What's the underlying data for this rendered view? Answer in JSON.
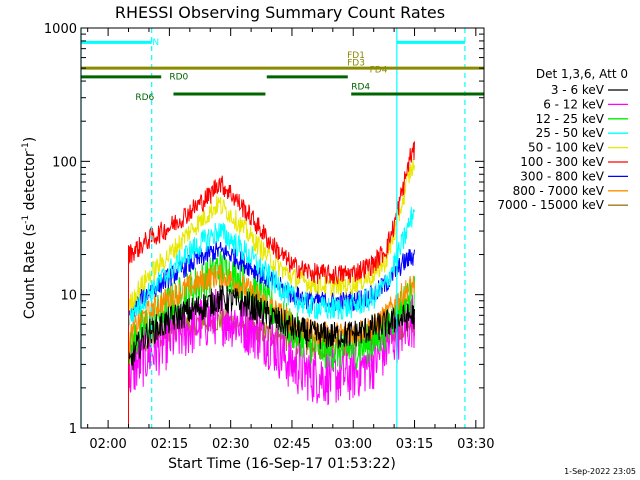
{
  "chart_data": {
    "type": "line",
    "title": "RHESSI Observing Summary Count Rates",
    "xlabel": "Start Time (16-Sep-17 01:53:22)",
    "ylabel_main": "Count Rate (s",
    "ylabel_sup1": "-1",
    "ylabel_mid": " detector",
    "ylabel_sup2": "-1",
    "ylabel_end": ")",
    "y_scale": "log",
    "ylim": [
      1,
      1000
    ],
    "xlim": [
      "01:53:22",
      "03:32:00"
    ],
    "x_ticks": [
      "02:00",
      "02:15",
      "02:30",
      "02:45",
      "03:00",
      "03:15",
      "03:30"
    ],
    "y_ticks": [
      "1",
      "10",
      "100",
      "1000"
    ],
    "timestamp": "1-Sep-2022 23:05",
    "legend": {
      "title": "Det 1,3,6, Att 0",
      "placement": "right",
      "entries": [
        {
          "label": "3 - 6 keV",
          "color": "#000000"
        },
        {
          "label": "6 - 12 keV",
          "color": "#ff00ff"
        },
        {
          "label": "12 - 25 keV",
          "color": "#00ee00"
        },
        {
          "label": "25 - 50 keV",
          "color": "#00ffff"
        },
        {
          "label": "50 - 100 keV",
          "color": "#e8e800"
        },
        {
          "label": "100 - 300 keV",
          "color": "#ff0000"
        },
        {
          "label": "300 - 800 keV",
          "color": "#0000ff"
        },
        {
          "label": "800 - 7000 keV",
          "color": "#ff8c00"
        },
        {
          "label": "7000 - 15000 keV",
          "color": "#a0781e"
        }
      ]
    },
    "series": [
      {
        "name": "3 - 6 keV",
        "color": "#000000",
        "x": [
          "02:05:00",
          "02:07:00",
          "02:10:00",
          "02:15:00",
          "02:20:00",
          "02:25:00",
          "02:27:00",
          "02:30:00",
          "02:35:00",
          "02:40:00",
          "02:45:00",
          "02:50:00",
          "02:55:00",
          "03:00:00",
          "03:05:00",
          "03:08:00",
          "03:10:00",
          "03:12:00",
          "03:14:00",
          "03:15:00"
        ],
        "y": [
          2.8,
          4.0,
          5.2,
          6.4,
          7.5,
          8.6,
          9.3,
          9.1,
          8.2,
          6.8,
          5.6,
          5.0,
          4.9,
          5.1,
          5.6,
          6.0,
          6.3,
          6.6,
          6.9,
          7.0
        ]
      },
      {
        "name": "6 - 12 keV",
        "color": "#ff00ff",
        "x": [
          "02:05:00",
          "02:07:00",
          "02:10:00",
          "02:15:00",
          "02:20:00",
          "02:25:00",
          "02:27:00",
          "02:30:00",
          "02:35:00",
          "02:40:00",
          "02:45:00",
          "02:50:00",
          "02:55:00",
          "03:00:00",
          "03:05:00",
          "03:08:00",
          "03:10:00",
          "03:12:00",
          "03:14:00",
          "03:15:00"
        ],
        "y": [
          2.4,
          3.0,
          3.6,
          4.6,
          5.6,
          6.6,
          7.0,
          6.6,
          5.6,
          4.4,
          3.0,
          2.5,
          2.4,
          2.6,
          3.2,
          4.0,
          4.8,
          5.6,
          6.4,
          6.6
        ]
      },
      {
        "name": "12 - 25 keV",
        "color": "#00ee00",
        "x": [
          "02:05:00",
          "02:07:00",
          "02:10:00",
          "02:15:00",
          "02:20:00",
          "02:25:00",
          "02:27:00",
          "02:30:00",
          "02:35:00",
          "02:40:00",
          "02:45:00",
          "02:50:00",
          "02:55:00",
          "03:00:00",
          "03:05:00",
          "03:08:00",
          "03:10:00",
          "03:12:00",
          "03:14:00",
          "03:15:00"
        ],
        "y": [
          4.0,
          5.0,
          6.2,
          8.5,
          11.0,
          14.0,
          16.0,
          14.5,
          11.0,
          8.0,
          5.5,
          4.2,
          3.8,
          3.9,
          4.4,
          5.5,
          7.0,
          8.5,
          9.5,
          9.8
        ]
      },
      {
        "name": "25 - 50 keV",
        "color": "#00ffff",
        "x": [
          "02:05:00",
          "02:07:00",
          "02:10:00",
          "02:15:00",
          "02:20:00",
          "02:25:00",
          "02:27:00",
          "02:30:00",
          "02:35:00",
          "02:40:00",
          "02:45:00",
          "02:50:00",
          "02:55:00",
          "03:00:00",
          "03:05:00",
          "03:08:00",
          "03:10:00",
          "03:12:00",
          "03:14:00",
          "03:15:00"
        ],
        "y": [
          6.5,
          8.0,
          10.5,
          15.0,
          21.0,
          27.0,
          30.0,
          26.0,
          19.0,
          13.0,
          9.5,
          8.0,
          7.8,
          8.2,
          9.5,
          12.0,
          17.0,
          24.0,
          36.0,
          44.0
        ]
      },
      {
        "name": "50 - 100 keV",
        "color": "#e8e800",
        "x": [
          "02:05:00",
          "02:07:00",
          "02:10:00",
          "02:15:00",
          "02:20:00",
          "02:25:00",
          "02:27:00",
          "02:30:00",
          "02:35:00",
          "02:40:00",
          "02:45:00",
          "02:50:00",
          "02:55:00",
          "03:00:00",
          "03:05:00",
          "03:08:00",
          "03:10:00",
          "03:12:00",
          "03:14:00",
          "03:15:00"
        ],
        "y": [
          8.0,
          10.5,
          14.0,
          20.0,
          30.0,
          42.0,
          48.0,
          40.0,
          27.0,
          18.0,
          13.5,
          12.0,
          11.5,
          12.0,
          14.0,
          18.0,
          28.0,
          50.0,
          85.0,
          95.0
        ]
      },
      {
        "name": "100 - 300 keV",
        "color": "#ff0000",
        "x": [
          "02:05:00",
          "02:07:00",
          "02:10:00",
          "02:15:00",
          "02:20:00",
          "02:25:00",
          "02:27:00",
          "02:30:00",
          "02:35:00",
          "02:40:00",
          "02:45:00",
          "02:50:00",
          "02:55:00",
          "03:00:00",
          "03:05:00",
          "03:08:00",
          "03:10:00",
          "03:12:00",
          "03:14:00",
          "03:15:00"
        ],
        "y": [
          20.0,
          22.0,
          26.0,
          32.0,
          42.0,
          56.0,
          70.0,
          58.0,
          38.0,
          24.0,
          16.5,
          14.5,
          14.0,
          14.5,
          17.0,
          22.0,
          33.0,
          60.0,
          110.0,
          118.0
        ]
      },
      {
        "name": "300 - 800 keV",
        "color": "#0000ff",
        "x": [
          "02:05:00",
          "02:07:00",
          "02:10:00",
          "02:15:00",
          "02:20:00",
          "02:25:00",
          "02:27:00",
          "02:30:00",
          "02:35:00",
          "02:40:00",
          "02:45:00",
          "02:50:00",
          "02:55:00",
          "03:00:00",
          "03:05:00",
          "03:08:00",
          "03:10:00",
          "03:12:00",
          "03:14:00",
          "03:15:00"
        ],
        "y": [
          6.5,
          8.5,
          10.5,
          13.5,
          17.0,
          20.5,
          21.5,
          20.0,
          16.0,
          12.5,
          10.0,
          9.0,
          8.8,
          9.0,
          10.0,
          12.0,
          14.5,
          17.0,
          19.0,
          19.5
        ]
      },
      {
        "name": "800 - 7000 keV",
        "color": "#ff8c00",
        "x": [
          "02:05:00",
          "02:07:00",
          "02:10:00",
          "02:15:00",
          "02:20:00",
          "02:25:00",
          "02:27:00",
          "02:30:00",
          "02:35:00",
          "02:40:00",
          "02:45:00",
          "02:50:00",
          "02:55:00",
          "03:00:00",
          "03:05:00",
          "03:08:00",
          "03:10:00",
          "03:12:00",
          "03:14:00",
          "03:15:00"
        ],
        "y": [
          4.5,
          6.0,
          7.5,
          9.5,
          11.5,
          13.5,
          14.0,
          13.0,
          10.5,
          8.0,
          6.2,
          5.2,
          5.0,
          5.2,
          5.8,
          7.0,
          8.5,
          10.0,
          11.5,
          12.0
        ]
      },
      {
        "name": "7000 - 15000 keV",
        "color": "#a0781e",
        "x": [
          "02:05:00",
          "02:10:00",
          "02:15:00",
          "02:25:00",
          "02:30:00",
          "02:40:00",
          "02:50:00",
          "03:00:00",
          "03:10:00",
          "03:15:00"
        ],
        "y": [
          3.8,
          4.5,
          5.5,
          6.5,
          6.3,
          5.0,
          4.0,
          4.2,
          5.5,
          6.0
        ]
      }
    ],
    "attenuator_markers": [
      {
        "x": "01:53:22",
        "color": "#00ffff",
        "style": "solid"
      },
      {
        "x": "02:10:40",
        "color": "#00ffff",
        "style": "dashed"
      },
      {
        "x": "03:10:40",
        "color": "#00ffff",
        "style": "solid"
      },
      {
        "x": "03:27:20",
        "color": "#00ffff",
        "style": "dashed"
      }
    ],
    "flag_bars": [
      {
        "label": "N",
        "color": "#00ffff",
        "y_value": 780,
        "segments": [
          [
            "01:53:22",
            "02:10:40"
          ],
          [
            "03:10:40",
            "03:27:20"
          ]
        ],
        "label_x": "02:10:50",
        "label_y_value": 800
      },
      {
        "label": "FD1",
        "color": "#8b8b00",
        "y_value": 500,
        "segments": [],
        "label_x": "02:58:30",
        "label_y_value": 640
      },
      {
        "label": "FD3",
        "color": "#8b8b00",
        "y_value": 500,
        "segments": [
          [
            "01:53:22",
            "03:32:00"
          ]
        ],
        "label_x": "02:58:30",
        "label_y_value": 560
      },
      {
        "label": "FD4",
        "color": "#8b8b00",
        "y_value": 500,
        "segments": [],
        "label_x": "03:04:00",
        "label_y_value": 495
      },
      {
        "label": "RD0",
        "color": "#006400",
        "y_value": 430,
        "segments": [
          [
            "01:53:22",
            "02:13:00"
          ],
          [
            "02:38:50",
            "02:58:40"
          ]
        ],
        "label_x": "02:15:00",
        "label_y_value": 440
      },
      {
        "label": "RD4",
        "color": "#006400",
        "y_value": 320,
        "segments": [
          [
            "02:59:30",
            "03:32:00"
          ]
        ],
        "label_x": "02:59:30",
        "label_y_value": 370
      },
      {
        "label": "RD6",
        "color": "#006400",
        "y_value": 320,
        "segments": [
          [
            "02:16:00",
            "02:38:30"
          ]
        ],
        "label_x": "02:06:40",
        "label_y_value": 310
      }
    ],
    "grid": false
  }
}
